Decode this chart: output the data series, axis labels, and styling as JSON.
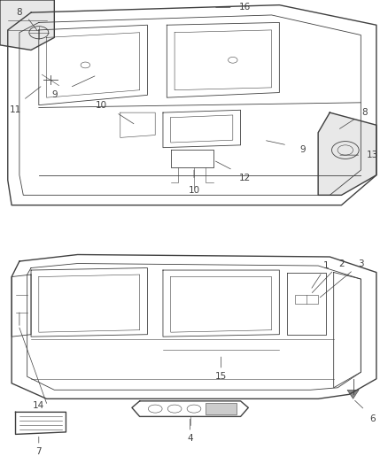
{
  "bg_color": "#ffffff",
  "fig_width": 4.38,
  "fig_height": 5.33,
  "dpi": 100,
  "line_color": "#404040",
  "label_color": "#404040",
  "label_fontsize": 7.5
}
